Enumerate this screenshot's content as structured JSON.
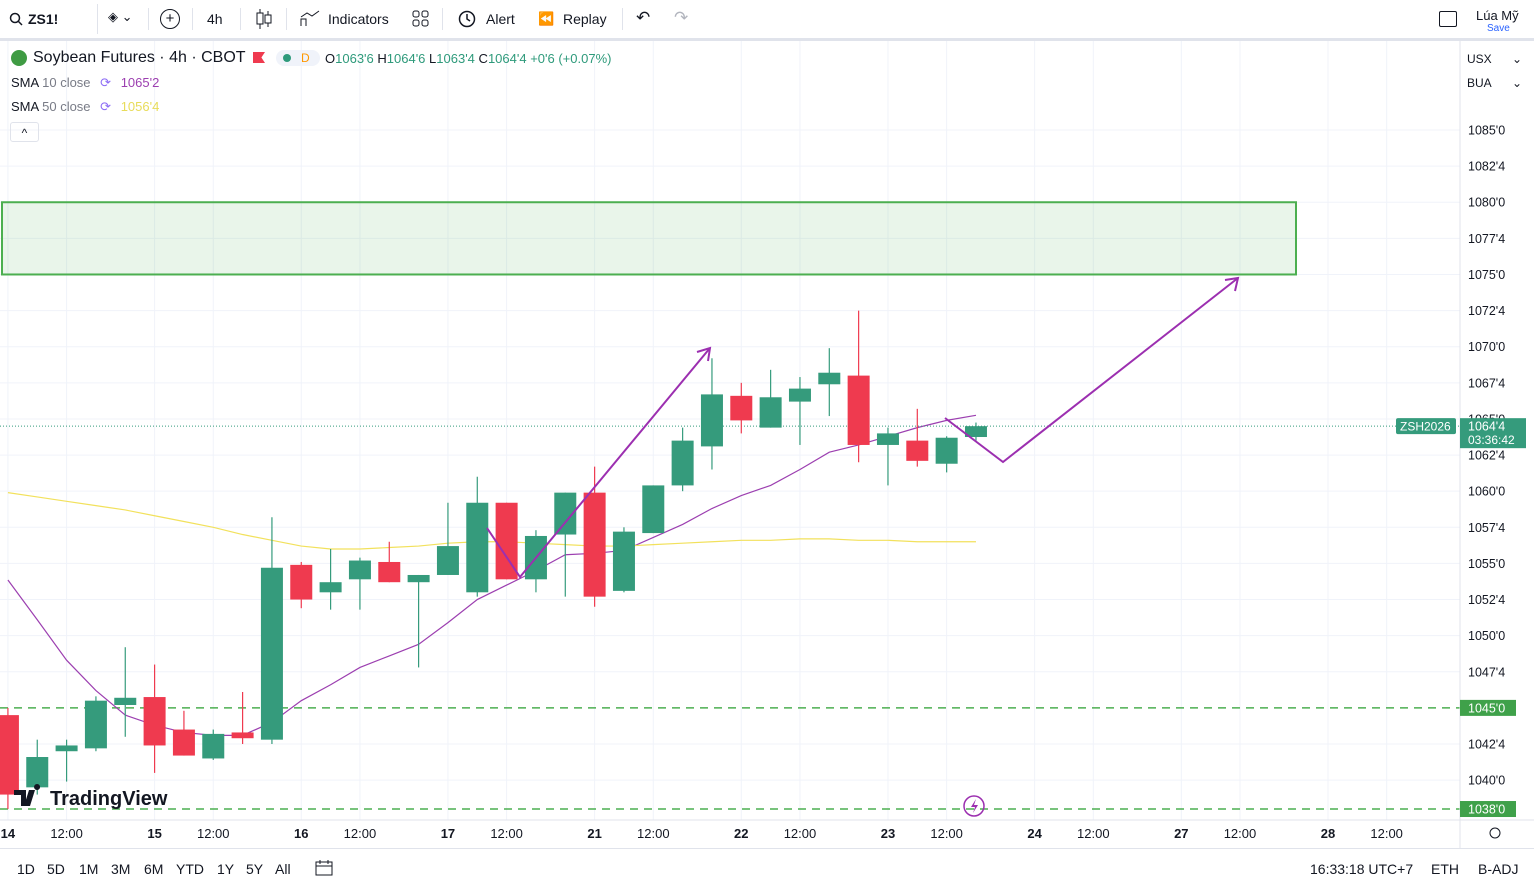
{
  "toolbar": {
    "symbol": "ZS1!",
    "interval": "4h",
    "indicators": "Indicators",
    "alert": "Alert",
    "replay": "Replay",
    "user": "Lúa Mỹ",
    "save": "Save"
  },
  "legend": {
    "title": "Soybean Futures · 4h · CBOT",
    "session": "D",
    "open_label": "O",
    "open": "1063'6",
    "high_label": "H",
    "high": "1064'6",
    "low_label": "L",
    "low": "1063'4",
    "close_label": "C",
    "close": "1064'4",
    "change": "+0'6 (+0.07%)",
    "indicators": [
      {
        "name": "SMA",
        "length": "10",
        "source": "close",
        "value": "1065'2"
      },
      {
        "name": "SMA",
        "length": "50",
        "source": "close",
        "value": "1056'4"
      }
    ],
    "currency": "USX",
    "unit": "BUA"
  },
  "watermark": "TradingView",
  "bottom_bar": {
    "ranges": [
      "1D",
      "5D",
      "1M",
      "3M",
      "6M",
      "YTD",
      "1Y",
      "5Y",
      "All"
    ],
    "clock": "16:33:18 UTC+7",
    "session": "ETH",
    "adjustment": "B-ADJ"
  },
  "chart_data": {
    "type": "candlestick",
    "up_color": "#359b7c",
    "down_color": "#ef3a4f",
    "open": [
      1044.5,
      1039.5,
      1042,
      1042.2,
      1045.2,
      1045.75,
      1043.5,
      1041.5,
      1043.3,
      1042.8,
      1054.9,
      1053,
      1053.9,
      1055.1,
      1053.7,
      1054.2,
      1053,
      1059.2,
      1053.9,
      1057,
      1059.9,
      1053.1,
      1057.1,
      1060.4,
      1063.1,
      1066.6,
      1064.4,
      1066.2,
      1067.4,
      1068,
      1063.2,
      1063.5,
      1061.9,
      1063.75
    ],
    "high": [
      1045,
      1042.8,
      1042.8,
      1045.8,
      1049.2,
      1048,
      1044.8,
      1043.5,
      1046.1,
      1058.2,
      1055.1,
      1056,
      1055.4,
      1056.5,
      1054.2,
      1059.2,
      1061,
      1059.2,
      1057.3,
      1059.9,
      1061.7,
      1057.5,
      1060.4,
      1064.4,
      1069.2,
      1067.5,
      1068.4,
      1067.9,
      1069.9,
      1072.5,
      1064.4,
      1065.7,
      1063.8,
      1064.75
    ],
    "low": [
      1038,
      1039,
      1039.9,
      1042,
      1043,
      1040.5,
      1041.7,
      1041.4,
      1042.5,
      1042.5,
      1051.9,
      1051.8,
      1051.8,
      1053.7,
      1047.8,
      1054.2,
      1052.7,
      1053.9,
      1053,
      1052.7,
      1052,
      1053,
      1057.1,
      1060,
      1061.5,
      1064,
      1064.4,
      1063.2,
      1065.2,
      1062,
      1060.4,
      1061.7,
      1061.3,
      1063.5
    ],
    "close": [
      1039,
      1041.6,
      1042.4,
      1045.5,
      1045.7,
      1042.4,
      1041.7,
      1043.2,
      1042.9,
      1054.7,
      1052.5,
      1053.7,
      1055.2,
      1053.7,
      1054.2,
      1056.2,
      1059.2,
      1053.9,
      1056.9,
      1059.9,
      1052.7,
      1057.2,
      1060.4,
      1063.5,
      1066.7,
      1064.9,
      1066.5,
      1067.1,
      1068.2,
      1063.2,
      1064,
      1062.1,
      1063.7,
      1064.5
    ],
    "lines": [
      {
        "name": "SMA 10",
        "color": "#9c3fb0",
        "values": [
          1053.85,
          1051.1,
          1048.3,
          1046.2,
          1044.5,
          1043.8,
          1043.3,
          1043.1,
          1043.1,
          1044,
          1045.5,
          1046.6,
          1047.8,
          1048.6,
          1049.4,
          1050.9,
          1052.5,
          1053.5,
          1054.5,
          1055.6,
          1055.7,
          1055.9,
          1056.8,
          1057.7,
          1058.8,
          1059.7,
          1060.4,
          1061.5,
          1062.7,
          1063.2,
          1063.8,
          1064.4,
          1064.9,
          1065.25
        ]
      },
      {
        "name": "SMA 50",
        "color": "#f2e15c",
        "values": [
          1059.9,
          1059.6,
          1059.3,
          1059,
          1058.7,
          1058.3,
          1057.9,
          1057.5,
          1057,
          1056.6,
          1056.2,
          1056,
          1056,
          1056.1,
          1056.2,
          1056.4,
          1056.5,
          1056.5,
          1056.4,
          1056.3,
          1056.2,
          1056.2,
          1056.3,
          1056.4,
          1056.5,
          1056.6,
          1056.6,
          1056.7,
          1056.7,
          1056.6,
          1056.6,
          1056.5,
          1056.5,
          1056.5
        ]
      }
    ],
    "zone": {
      "low": 1075,
      "high": 1080,
      "color": "#4caf50"
    },
    "levels": [
      {
        "value": 1045,
        "label": "1045'0"
      },
      {
        "value": 1038,
        "label": "1038'0"
      }
    ],
    "last_price": {
      "symbol": "ZSH2026",
      "value": 1064.5,
      "label": "1064'4",
      "countdown": "03:36:42"
    },
    "xlim": [
      -0.27,
      49.5
    ],
    "ylim": [
      1037.24,
      1091.23
    ],
    "xticks": [
      {
        "value": 0,
        "label": "14"
      },
      {
        "value": 2,
        "label": "12:00"
      },
      {
        "value": 5,
        "label": "15"
      },
      {
        "value": 7,
        "label": "12:00"
      },
      {
        "value": 10,
        "label": "16"
      },
      {
        "value": 12,
        "label": "12:00"
      },
      {
        "value": 15,
        "label": "17"
      },
      {
        "value": 17,
        "label": "12:00"
      },
      {
        "value": 20,
        "label": "21"
      },
      {
        "value": 22,
        "label": "12:00"
      },
      {
        "value": 25,
        "label": "22"
      },
      {
        "value": 27,
        "label": "12:00"
      },
      {
        "value": 30,
        "label": "23"
      },
      {
        "value": 32,
        "label": "12:00"
      },
      {
        "value": 35,
        "label": "24"
      },
      {
        "value": 37,
        "label": "12:00"
      },
      {
        "value": 40,
        "label": "27"
      },
      {
        "value": 42,
        "label": "12:00"
      },
      {
        "value": 45,
        "label": "28"
      },
      {
        "value": 47,
        "label": "12:00"
      }
    ],
    "yticks": [
      {
        "value": 1040,
        "label": "1040'0"
      },
      {
        "value": 1042.5,
        "label": "1042'4"
      },
      {
        "value": 1047.5,
        "label": "1047'4"
      },
      {
        "value": 1050,
        "label": "1050'0"
      },
      {
        "value": 1052.5,
        "label": "1052'4"
      },
      {
        "value": 1055,
        "label": "1055'0"
      },
      {
        "value": 1057.5,
        "label": "1057'4"
      },
      {
        "value": 1060,
        "label": "1060'0"
      },
      {
        "value": 1062.5,
        "label": "1062'4"
      },
      {
        "value": 1065,
        "label": "1065'0"
      },
      {
        "value": 1067.5,
        "label": "1067'4"
      },
      {
        "value": 1070,
        "label": "1070'0"
      },
      {
        "value": 1072.5,
        "label": "1072'4"
      },
      {
        "value": 1075,
        "label": "1075'0"
      },
      {
        "value": 1077.5,
        "label": "1077'4"
      },
      {
        "value": 1080,
        "label": "1080'0"
      },
      {
        "value": 1082.5,
        "label": "1082'4"
      },
      {
        "value": 1085,
        "label": "1085'0"
      }
    ],
    "grid": true
  }
}
